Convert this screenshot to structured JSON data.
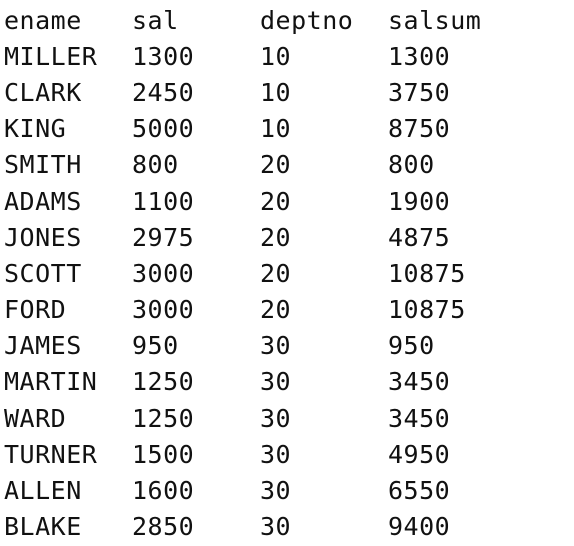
{
  "table": {
    "headers": [
      "ename",
      "sal",
      "deptno",
      "salsum"
    ],
    "rows": [
      [
        "MILLER",
        "1300",
        "10",
        "1300"
      ],
      [
        "CLARK",
        "2450",
        "10",
        "3750"
      ],
      [
        "KING",
        "5000",
        "10",
        "8750"
      ],
      [
        "SMITH",
        "800",
        "20",
        "800"
      ],
      [
        "ADAMS",
        "1100",
        "20",
        "1900"
      ],
      [
        "JONES",
        "2975",
        "20",
        "4875"
      ],
      [
        "SCOTT",
        "3000",
        "20",
        "10875"
      ],
      [
        "FORD",
        "3000",
        "20",
        "10875"
      ],
      [
        "JAMES",
        "950",
        "30",
        "950"
      ],
      [
        "MARTIN",
        "1250",
        "30",
        "3450"
      ],
      [
        "WARD",
        "1250",
        "30",
        "3450"
      ],
      [
        "TURNER",
        "1500",
        "30",
        "4950"
      ],
      [
        "ALLEN",
        "1600",
        "30",
        "6550"
      ],
      [
        "BLAKE",
        "2850",
        "30",
        "9400"
      ]
    ]
  },
  "colors": {
    "text": "#111111",
    "background": "#ffffff"
  }
}
